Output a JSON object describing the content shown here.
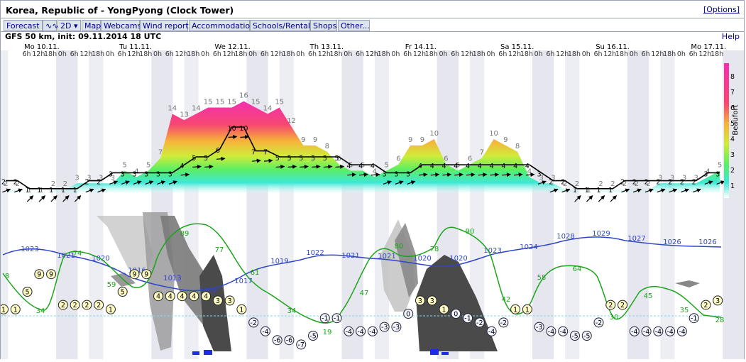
{
  "window": {
    "title": "Korea, Republic of - YongPyong (Clock Tower)",
    "options_label": "[Options]"
  },
  "toolbar": {
    "tabs": [
      {
        "label": "Forecast"
      },
      {
        "label": "∿∿"
      },
      {
        "label": "2D ▾"
      },
      {
        "label": "Map"
      },
      {
        "label": "Webcams"
      },
      {
        "label": "Wind reports"
      },
      {
        "label": "Accommodation"
      },
      {
        "label": "Schools/Rentals"
      },
      {
        "label": "Shops"
      },
      {
        "label": "Other..."
      }
    ]
  },
  "infobar": {
    "model": "GFS 50 km, init: 09.11.2014 18 UTC",
    "help_label": "Help"
  },
  "colors": {
    "pressure": "#2f46c8",
    "humidity": "#1aa51a",
    "weekend_band": "#e6e6ef",
    "cloud_high": "#bfbfbf",
    "cloud_low": "#4a4a4a",
    "precip": "#1d2de6"
  },
  "chart_data": {
    "type": "meteogram",
    "days": [
      "Mo 10.11.",
      "Tu 11.11.",
      "We 12.11.",
      "Th 13.11.",
      "Fr 14.11.",
      "Sa 15.11.",
      "Su 16.11.",
      "Mo 17.11."
    ],
    "hour_labels": [
      "6h",
      "12h",
      "18h",
      "0h"
    ],
    "beaufort_axis": {
      "label": "Beaufort",
      "ticks": [
        "1",
        "2",
        "3",
        "4",
        "5",
        "6",
        "7",
        "8"
      ]
    },
    "wind_gusts_kn": [
      2,
      2,
      1,
      1,
      2,
      2,
      3,
      3,
      3,
      3,
      5,
      4,
      5,
      7,
      14,
      13,
      14,
      15,
      15,
      15,
      16,
      15,
      14,
      15,
      12,
      9,
      9,
      8,
      6,
      5,
      5,
      4,
      5,
      6,
      9,
      9,
      10,
      6,
      5,
      6,
      7,
      10,
      9,
      8,
      4,
      3,
      3,
      2,
      2,
      1,
      2,
      2,
      2,
      2,
      2,
      3,
      3,
      3,
      3,
      4,
      5
    ],
    "wind_speed_kn": [
      2,
      2,
      1,
      1,
      1,
      1,
      1,
      2,
      2,
      3,
      3,
      3,
      3,
      3,
      3,
      4,
      5,
      5,
      6,
      10,
      10,
      7,
      7,
      5,
      5,
      5,
      5,
      5,
      5,
      4,
      4,
      4,
      3,
      3,
      3,
      4,
      4,
      4,
      4,
      4,
      4,
      4,
      4,
      4,
      4,
      3,
      2,
      2,
      1,
      1,
      1,
      1,
      2,
      2,
      2,
      2,
      2,
      2,
      2,
      3,
      3
    ],
    "pressure_hpa_labels": [
      "1023",
      "1021",
      "1020",
      "1016",
      "1013",
      "1009",
      "1017",
      "1019",
      "1022",
      "1021",
      "1021",
      "1020",
      "1020",
      "1023",
      "1024",
      "1028",
      "1029",
      "1027",
      "1026",
      "1026"
    ],
    "humidity_pct_labels": [
      "8",
      "34",
      "74",
      "59",
      "89",
      "77",
      "61",
      "34",
      "19",
      "47",
      "80",
      "78",
      "90",
      "42",
      "58",
      "64",
      "30",
      "45",
      "35",
      "28"
    ],
    "temperature_c": [
      1,
      1,
      5,
      9,
      9,
      2,
      2,
      2,
      2,
      1,
      5,
      9,
      9,
      4,
      4,
      4,
      4,
      4,
      3,
      3,
      1,
      -2,
      -4,
      -6,
      -6,
      -7,
      -5,
      -1,
      -1,
      -4,
      -4,
      -4,
      -3,
      -3,
      0,
      3,
      3,
      1,
      0,
      -1,
      -2,
      -4,
      -2,
      1,
      1,
      -3,
      -4,
      -4,
      -5,
      -5,
      -2,
      2,
      2,
      -4,
      -4,
      -4,
      -4,
      -4,
      -1,
      2,
      3
    ]
  }
}
